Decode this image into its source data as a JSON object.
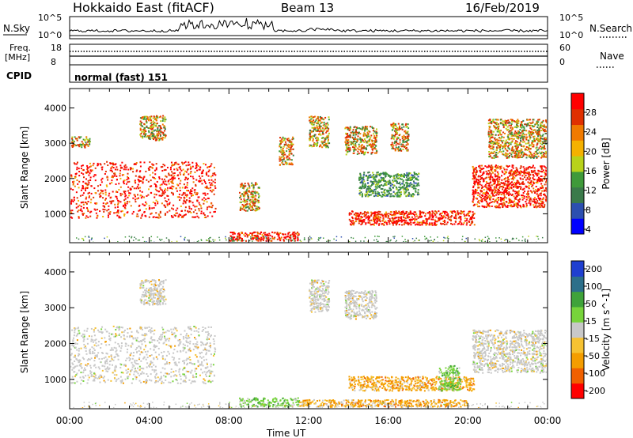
{
  "header": {
    "title": "Hokkaido East (fitACF)",
    "beam": "Beam 13",
    "date": "16/Feb/2019"
  },
  "status_panels": {
    "nsky_label": "N.Sky",
    "nsky_ticks": [
      "10^5",
      "10^0"
    ],
    "nsearch_label": "N.Search",
    "freq_label_1": "Freq.",
    "freq_label_2": "[MHz]",
    "freq_ticks": [
      "18",
      "8"
    ],
    "nave_label": "Nave",
    "nave_ticks": [
      "60",
      "0"
    ],
    "cpid_label": "CPID",
    "cpid_text": "normal (fast) 151"
  },
  "time_axis": {
    "label": "Time UT",
    "ticks": [
      "00:00",
      "04:00",
      "08:00",
      "12:00",
      "16:00",
      "20:00",
      "00:00"
    ]
  },
  "chart_data": [
    {
      "type": "heatmap",
      "panel": "power",
      "x_range_hours": [
        0,
        24
      ],
      "ylabel": "Slant Range [km]",
      "ylim": [
        180,
        4550
      ],
      "yticks": [
        1000,
        2000,
        3000,
        4000
      ],
      "colorbar": {
        "label": "Power [dB]",
        "range": [
          0,
          32
        ],
        "ticks": [
          "28",
          "24",
          "20",
          "16",
          "12",
          "8",
          "4"
        ],
        "colors": [
          "#0000ff",
          "#2c4fb0",
          "#3a7a4a",
          "#3f9a3a",
          "#b8d21a",
          "#f4b100",
          "#f07a00",
          "#e03000",
          "#ff0000"
        ]
      },
      "scatter_regions": [
        {
          "t": [
            0.0,
            7.3
          ],
          "r": [
            900,
            2500
          ],
          "level": "high"
        },
        {
          "t": [
            3.5,
            4.8
          ],
          "r": [
            3100,
            3800
          ],
          "level": "mid"
        },
        {
          "t": [
            0.0,
            1.0
          ],
          "r": [
            2900,
            3200
          ],
          "level": "mid"
        },
        {
          "t": [
            8.5,
            9.5
          ],
          "r": [
            1100,
            1900
          ],
          "level": "mid"
        },
        {
          "t": [
            10.5,
            11.2
          ],
          "r": [
            2400,
            3200
          ],
          "level": "mid"
        },
        {
          "t": [
            12.0,
            13.0
          ],
          "r": [
            2900,
            3800
          ],
          "level": "mid"
        },
        {
          "t": [
            13.8,
            15.4
          ],
          "r": [
            2700,
            3500
          ],
          "level": "mid"
        },
        {
          "t": [
            16.1,
            17.0
          ],
          "r": [
            2800,
            3600
          ],
          "level": "mid"
        },
        {
          "t": [
            14.0,
            20.3
          ],
          "r": [
            700,
            1100
          ],
          "level": "high"
        },
        {
          "t": [
            8.0,
            11.5
          ],
          "r": [
            250,
            500
          ],
          "level": "high"
        },
        {
          "t": [
            20.2,
            24.0
          ],
          "r": [
            1200,
            2400
          ],
          "level": "high"
        },
        {
          "t": [
            21.0,
            24.0
          ],
          "r": [
            2600,
            3700
          ],
          "level": "mid"
        },
        {
          "t": [
            14.5,
            17.5
          ],
          "r": [
            1500,
            2200
          ],
          "level": "low"
        }
      ]
    },
    {
      "type": "heatmap",
      "panel": "velocity",
      "x_range_hours": [
        0,
        24
      ],
      "ylabel": "Slant Range [km]",
      "ylim": [
        180,
        4550
      ],
      "yticks": [
        1000,
        2000,
        3000,
        4000
      ],
      "colorbar": {
        "label": "Velocity [m s^-1]",
        "range": [
          -250,
          250
        ],
        "ticks": [
          "200",
          "100",
          "50",
          "15",
          "-15",
          "-50",
          "-100",
          "-200"
        ],
        "colors": [
          "#ff0000",
          "#f06000",
          "#f49d00",
          "#f6c232",
          "#c8c8c8",
          "#77d43b",
          "#3fa33a",
          "#2c6f8a",
          "#1f3fd0"
        ]
      },
      "scatter_regions": [
        {
          "t": [
            0.0,
            7.3
          ],
          "r": [
            900,
            2500
          ],
          "level": "zero"
        },
        {
          "t": [
            8.5,
            11.5
          ],
          "r": [
            250,
            500
          ],
          "level": "pos"
        },
        {
          "t": [
            11.5,
            20.0
          ],
          "r": [
            250,
            450
          ],
          "level": "neg"
        },
        {
          "t": [
            14.0,
            20.3
          ],
          "r": [
            700,
            1100
          ],
          "level": "neg"
        },
        {
          "t": [
            18.5,
            19.6
          ],
          "r": [
            700,
            1400
          ],
          "level": "pos"
        },
        {
          "t": [
            20.2,
            24.0
          ],
          "r": [
            1200,
            2400
          ],
          "level": "zero"
        },
        {
          "t": [
            3.5,
            4.8
          ],
          "r": [
            3100,
            3800
          ],
          "level": "zero"
        },
        {
          "t": [
            12.0,
            13.0
          ],
          "r": [
            2900,
            3800
          ],
          "level": "zero"
        },
        {
          "t": [
            13.8,
            15.4
          ],
          "r": [
            2700,
            3500
          ],
          "level": "zero"
        }
      ]
    }
  ]
}
